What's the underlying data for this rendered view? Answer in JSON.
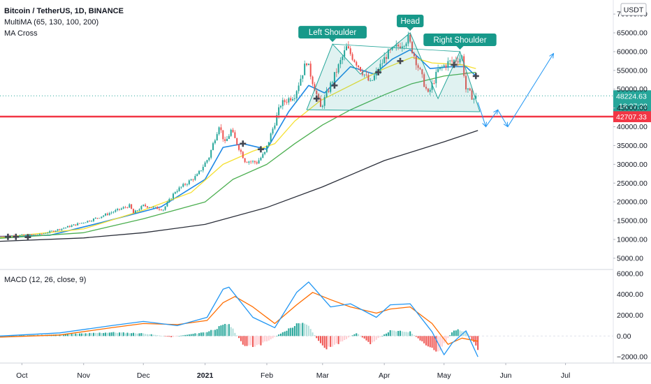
{
  "chart_data": {
    "type": "candlestick",
    "title": "Bitcoin / TetherUS, 1D, BINANCE",
    "indicators": [
      "MultiMA (65, 130, 100, 200)",
      "MA Cross"
    ],
    "currency_badge": "USDT",
    "price_axis": {
      "ylim": [
        2000,
        73000
      ],
      "ticks": [
        5000,
        10000,
        15000,
        20000,
        25000,
        30000,
        35000,
        40000,
        45000,
        50000,
        55000,
        60000,
        65000,
        70000
      ],
      "tick_labels": [
        "5000.00",
        "10000.00",
        "15000.00",
        "20000.00",
        "25000.00",
        "30000.00",
        "35000.00",
        "40000.00",
        "45000.00",
        "50000.00",
        "55000.00",
        "60000.00",
        "65000.00",
        "70000.00"
      ]
    },
    "x_axis": {
      "start": "2020-09-20",
      "end": "2021-07-25",
      "ticks": [
        {
          "date": "2020-10-01",
          "label": "Oct"
        },
        {
          "date": "2020-11-01",
          "label": "Nov"
        },
        {
          "date": "2020-12-01",
          "label": "Dec"
        },
        {
          "date": "2021-01-01",
          "label": "2021"
        },
        {
          "date": "2021-02-01",
          "label": "Feb"
        },
        {
          "date": "2021-03-01",
          "label": "Mar"
        },
        {
          "date": "2021-04-01",
          "label": "Apr"
        },
        {
          "date": "2021-05-01",
          "label": "May"
        },
        {
          "date": "2021-06-01",
          "label": "Jun"
        },
        {
          "date": "2021-07-01",
          "label": "Jul"
        }
      ]
    },
    "price_key_points": [
      [
        "2020-09-20",
        10900
      ],
      [
        "2020-10-10",
        11300
      ],
      [
        "2020-10-21",
        12900
      ],
      [
        "2020-11-05",
        15200
      ],
      [
        "2020-11-24",
        19000
      ],
      [
        "2020-11-26",
        17000
      ],
      [
        "2020-12-01",
        19000
      ],
      [
        "2020-12-11",
        18000
      ],
      [
        "2020-12-17",
        22800
      ],
      [
        "2020-12-28",
        27000
      ],
      [
        "2021-01-03",
        32000
      ],
      [
        "2021-01-08",
        40500
      ],
      [
        "2021-01-11",
        35500
      ],
      [
        "2021-01-14",
        39000
      ],
      [
        "2021-01-21",
        31000
      ],
      [
        "2021-01-27",
        30500
      ],
      [
        "2021-01-31",
        33000
      ],
      [
        "2021-02-08",
        46000
      ],
      [
        "2021-02-15",
        48500
      ],
      [
        "2021-02-21",
        57500
      ],
      [
        "2021-02-28",
        45000
      ],
      [
        "2021-03-13",
        61000
      ],
      [
        "2021-03-25",
        51500
      ],
      [
        "2021-04-02",
        59000
      ],
      [
        "2021-04-13",
        63500
      ],
      [
        "2021-04-18",
        56000
      ],
      [
        "2021-04-23",
        48500
      ],
      [
        "2021-04-28",
        55000
      ],
      [
        "2021-05-03",
        57000
      ],
      [
        "2021-05-10",
        58500
      ],
      [
        "2021-05-12",
        50000
      ],
      [
        "2021-05-16",
        47500
      ],
      [
        "2021-05-17",
        48224.63
      ]
    ],
    "series": [
      {
        "name": "MA 65",
        "color": "#1e88e5",
        "points": [
          [
            "2020-09-20",
            10800
          ],
          [
            "2020-10-15",
            11100
          ],
          [
            "2020-11-10",
            14500
          ],
          [
            "2020-12-10",
            18700
          ],
          [
            "2021-01-01",
            26000
          ],
          [
            "2021-01-10",
            34500
          ],
          [
            "2021-01-20",
            35500
          ],
          [
            "2021-02-01",
            34000
          ],
          [
            "2021-02-12",
            44000
          ],
          [
            "2021-02-22",
            51000
          ],
          [
            "2021-03-02",
            49000
          ],
          [
            "2021-03-15",
            56000
          ],
          [
            "2021-03-27",
            54000
          ],
          [
            "2021-04-05",
            58000
          ],
          [
            "2021-04-14",
            60500
          ],
          [
            "2021-04-24",
            55500
          ],
          [
            "2021-05-05",
            56000
          ],
          [
            "2021-05-12",
            56000
          ],
          [
            "2021-05-17",
            53500
          ]
        ]
      },
      {
        "name": "MA 130",
        "color": "#f5e030",
        "points": [
          [
            "2020-09-20",
            10500
          ],
          [
            "2020-11-01",
            12800
          ],
          [
            "2020-12-01",
            17800
          ],
          [
            "2020-12-25",
            22500
          ],
          [
            "2021-01-10",
            30000
          ],
          [
            "2021-01-25",
            33500
          ],
          [
            "2021-02-05",
            35500
          ],
          [
            "2021-02-15",
            41500
          ],
          [
            "2021-02-28",
            47000
          ],
          [
            "2021-03-15",
            51000
          ],
          [
            "2021-04-01",
            55500
          ],
          [
            "2021-04-15",
            58500
          ],
          [
            "2021-04-25",
            57000
          ],
          [
            "2021-05-10",
            56500
          ],
          [
            "2021-05-17",
            55500
          ]
        ]
      },
      {
        "name": "MA 100",
        "color": "#4caf50",
        "points": [
          [
            "2020-09-20",
            10300
          ],
          [
            "2020-11-01",
            11800
          ],
          [
            "2020-12-01",
            15500
          ],
          [
            "2021-01-01",
            20000
          ],
          [
            "2021-01-15",
            26000
          ],
          [
            "2021-02-01",
            30000
          ],
          [
            "2021-02-15",
            35500
          ],
          [
            "2021-03-01",
            40500
          ],
          [
            "2021-03-15",
            44500
          ],
          [
            "2021-04-01",
            48500
          ],
          [
            "2021-04-15",
            51500
          ],
          [
            "2021-05-01",
            53500
          ],
          [
            "2021-05-17",
            54500
          ]
        ]
      },
      {
        "name": "MA 200",
        "color": "#2a2e39",
        "points": [
          [
            "2020-09-20",
            9500
          ],
          [
            "2020-11-01",
            10400
          ],
          [
            "2020-12-01",
            11800
          ],
          [
            "2021-01-01",
            14000
          ],
          [
            "2021-02-01",
            18500
          ],
          [
            "2021-03-01",
            24000
          ],
          [
            "2021-04-01",
            31000
          ],
          [
            "2021-05-01",
            36000
          ],
          [
            "2021-05-18",
            39000
          ]
        ]
      }
    ],
    "ma_cross_markers": [
      [
        "2020-09-24",
        10700
      ],
      [
        "2020-09-28",
        10700
      ],
      [
        "2020-10-04",
        10600
      ],
      [
        "2021-01-20",
        35500
      ],
      [
        "2021-01-29",
        34000
      ],
      [
        "2021-02-26",
        47500
      ],
      [
        "2021-03-07",
        51000
      ],
      [
        "2021-03-29",
        54500
      ],
      [
        "2021-04-09",
        57500
      ],
      [
        "2021-05-06",
        56500
      ],
      [
        "2021-05-17",
        53500
      ]
    ],
    "head_and_shoulders": {
      "points": [
        [
          "2021-02-21",
          44500
        ],
        [
          "2021-03-06",
          62000
        ],
        [
          "2021-03-20",
          54000
        ],
        [
          "2021-04-14",
          65000
        ],
        [
          "2021-04-28",
          47500
        ],
        [
          "2021-05-09",
          60000
        ],
        [
          "2021-05-19",
          44000
        ]
      ],
      "neckline": [
        [
          "2021-02-21",
          44500
        ],
        [
          "2021-05-19",
          44000
        ]
      ],
      "labels": [
        {
          "text": "Left Shoulder",
          "date": "2021-03-06",
          "price": 62000
        },
        {
          "text": "Head",
          "date": "2021-04-14",
          "price": 65000
        },
        {
          "text": "Right Shoulder",
          "date": "2021-05-09",
          "price": 60000
        }
      ]
    },
    "projection_path": [
      [
        "2021-05-18",
        46500
      ],
      [
        "2021-05-22",
        40000
      ],
      [
        "2021-05-28",
        44500
      ],
      [
        "2021-06-02",
        40000
      ],
      [
        "2021-06-25",
        59500
      ]
    ],
    "support_level": {
      "price": 42707.33,
      "label": "42707.33",
      "color": "#f23645"
    },
    "last_price": {
      "price": 48224.63,
      "label": "48224.63",
      "countdown": "18:37:28",
      "color": "#26a69a"
    },
    "macd": {
      "label": "MACD (12, 26, close, 9)",
      "ylim": [
        -2600,
        6400
      ],
      "ticks": [
        6000,
        4000,
        2000,
        0,
        -2000
      ],
      "tick_labels": [
        "6000.00",
        "4000.00",
        "2000.00",
        "0.00",
        "−2000.00"
      ],
      "macd_line": [
        [
          "2020-09-20",
          0
        ],
        [
          "2020-10-20",
          300
        ],
        [
          "2020-11-15",
          1000
        ],
        [
          "2020-12-01",
          1400
        ],
        [
          "2020-12-18",
          1000
        ],
        [
          "2021-01-02",
          1800
        ],
        [
          "2021-01-10",
          4500
        ],
        [
          "2021-01-13",
          4700
        ],
        [
          "2021-01-25",
          1800
        ],
        [
          "2021-02-05",
          800
        ],
        [
          "2021-02-16",
          4200
        ],
        [
          "2021-02-22",
          5200
        ],
        [
          "2021-03-05",
          2800
        ],
        [
          "2021-03-15",
          3100
        ],
        [
          "2021-03-28",
          1800
        ],
        [
          "2021-04-04",
          3000
        ],
        [
          "2021-04-14",
          3100
        ],
        [
          "2021-04-25",
          400
        ],
        [
          "2021-05-01",
          -1800
        ],
        [
          "2021-05-05",
          -700
        ],
        [
          "2021-05-12",
          500
        ],
        [
          "2021-05-18",
          -2000
        ]
      ],
      "signal_line": [
        [
          "2020-09-20",
          -100
        ],
        [
          "2020-10-20",
          100
        ],
        [
          "2020-11-15",
          800
        ],
        [
          "2020-12-01",
          1200
        ],
        [
          "2020-12-18",
          1100
        ],
        [
          "2021-01-02",
          1500
        ],
        [
          "2021-01-10",
          3200
        ],
        [
          "2021-01-16",
          3800
        ],
        [
          "2021-01-25",
          2800
        ],
        [
          "2021-02-05",
          1200
        ],
        [
          "2021-02-16",
          3000
        ],
        [
          "2021-02-24",
          4200
        ],
        [
          "2021-03-05",
          3500
        ],
        [
          "2021-03-15",
          2800
        ],
        [
          "2021-03-28",
          2200
        ],
        [
          "2021-04-04",
          2600
        ],
        [
          "2021-04-14",
          2800
        ],
        [
          "2021-04-25",
          1200
        ],
        [
          "2021-05-03",
          -800
        ],
        [
          "2021-05-10",
          -200
        ],
        [
          "2021-05-18",
          -500
        ]
      ],
      "histogram_envelope": [
        [
          "2020-09-20",
          0
        ],
        [
          "2020-10-20",
          150
        ],
        [
          "2020-11-15",
          350
        ],
        [
          "2020-12-01",
          250
        ],
        [
          "2020-12-15",
          -100
        ],
        [
          "2021-01-02",
          400
        ],
        [
          "2021-01-13",
          1200
        ],
        [
          "2021-01-20",
          -800
        ],
        [
          "2021-01-26",
          -1100
        ],
        [
          "2021-02-03",
          -300
        ],
        [
          "2021-02-16",
          1100
        ],
        [
          "2021-02-21",
          1200
        ],
        [
          "2021-03-02",
          -1300
        ],
        [
          "2021-03-10",
          -600
        ],
        [
          "2021-03-18",
          300
        ],
        [
          "2021-03-25",
          -700
        ],
        [
          "2021-04-04",
          500
        ],
        [
          "2021-04-14",
          400
        ],
        [
          "2021-04-22",
          -900
        ],
        [
          "2021-04-28",
          -1500
        ],
        [
          "2021-05-06",
          600
        ],
        [
          "2021-05-12",
          500
        ],
        [
          "2021-05-18",
          -1200
        ]
      ]
    }
  }
}
